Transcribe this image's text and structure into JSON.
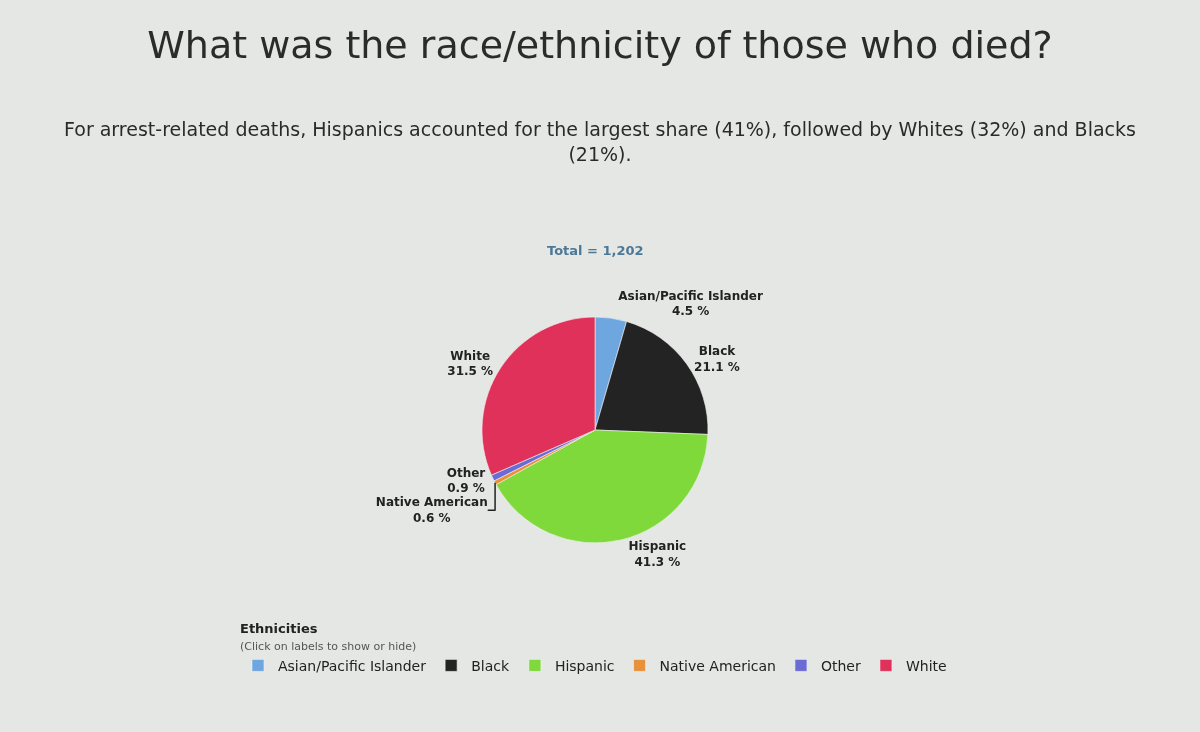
{
  "chart_data": {
    "type": "pie",
    "title": "What was the race/ethnicity of those who died?",
    "subtitle": "For arrest-related deaths, Hispanics accounted for the largest share (41%), followed by Whites (32%) and Blacks (21%).",
    "annotations": [
      "Total = 1,202"
    ],
    "legend_title": "Ethnicities\n(Click on labels to show or hide)",
    "categories": [
      "Asian/Pacific Islander",
      "Black",
      "Hispanic",
      "Native American",
      "Other",
      "White"
    ],
    "values": [
      4.5,
      21.1,
      41.3,
      0.6,
      0.9,
      31.5
    ],
    "value_labels": [
      "4.5 %",
      "21.1 %",
      "41.3 %",
      "0.6 %",
      "0.9 %",
      "31.5 %"
    ],
    "colors": [
      "#6ea6e0",
      "#232323",
      "#7fd93a",
      "#e8913a",
      "#6b6bd6",
      "#df3159"
    ],
    "legend": "bottom"
  }
}
